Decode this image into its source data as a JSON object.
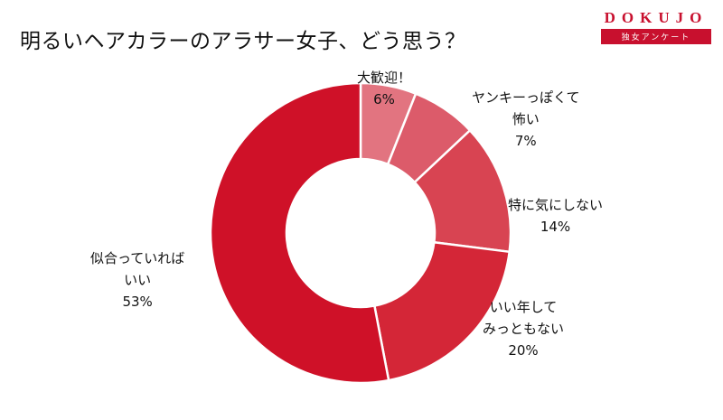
{
  "header": {
    "title": "明るいヘアカラーのアラサー女子、どう思う？"
  },
  "logo": {
    "word": "DOKUJO",
    "sub": "独女アンケート",
    "color": "#c8102e"
  },
  "chart_data": {
    "type": "pie",
    "donut": true,
    "categories": [
      "大歓迎！",
      "ヤンキーっぽくて\n怖い",
      "特に気にしない",
      "いい年して\nみっともない",
      "似合っていれば\nいい"
    ],
    "values": [
      6,
      7,
      14,
      20,
      53
    ],
    "labels": [
      "6%",
      "7%",
      "14%",
      "20%",
      "53%"
    ],
    "colors": [
      "#e27480",
      "#dc5b6a",
      "#d84452",
      "#d42637",
      "#cf1128"
    ],
    "title": "明るいヘアカラーのアラサー女子、どう思う？"
  }
}
